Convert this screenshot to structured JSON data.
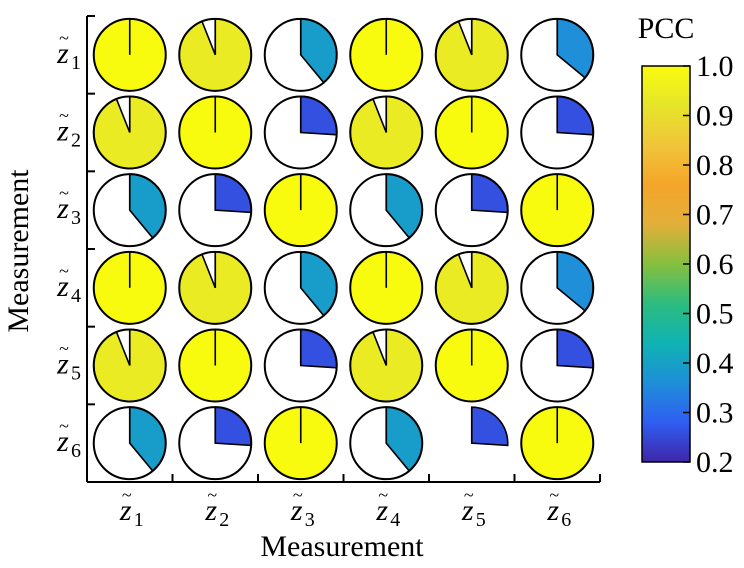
{
  "chart_data": {
    "type": "heatmap",
    "glyph": "pie",
    "xlabel": "Measurement",
    "ylabel": "Measurement",
    "x_categories": [
      {
        "symbol": "z",
        "accent": "~",
        "subscript": "1"
      },
      {
        "symbol": "z",
        "accent": "~",
        "subscript": "2"
      },
      {
        "symbol": "z",
        "accent": "~",
        "subscript": "3"
      },
      {
        "symbol": "z",
        "accent": "~",
        "subscript": "4"
      },
      {
        "symbol": "z",
        "accent": "~",
        "subscript": "5"
      },
      {
        "symbol": "z",
        "accent": "~",
        "subscript": "6"
      }
    ],
    "y_categories": [
      {
        "symbol": "z",
        "accent": "~",
        "subscript": "1"
      },
      {
        "symbol": "z",
        "accent": "~",
        "subscript": "2"
      },
      {
        "symbol": "z",
        "accent": "~",
        "subscript": "3"
      },
      {
        "symbol": "z",
        "accent": "~",
        "subscript": "4"
      },
      {
        "symbol": "z",
        "accent": "~",
        "subscript": "5"
      },
      {
        "symbol": "z",
        "accent": "~",
        "subscript": "6"
      }
    ],
    "values": [
      [
        1.0,
        0.94,
        0.39,
        1.0,
        0.94,
        0.36
      ],
      [
        0.94,
        1.0,
        0.26,
        0.94,
        1.0,
        0.26
      ],
      [
        0.39,
        0.26,
        1.0,
        0.39,
        0.26,
        1.0
      ],
      [
        1.0,
        0.94,
        0.39,
        1.0,
        0.94,
        0.36
      ],
      [
        0.94,
        1.0,
        0.26,
        0.94,
        1.0,
        0.26
      ],
      [
        0.39,
        0.26,
        1.0,
        0.39,
        0.26,
        1.0
      ]
    ],
    "outlined": [
      [
        true,
        true,
        true,
        true,
        true,
        true
      ],
      [
        true,
        true,
        true,
        true,
        true,
        true
      ],
      [
        true,
        true,
        true,
        true,
        true,
        true
      ],
      [
        true,
        true,
        true,
        true,
        true,
        true
      ],
      [
        true,
        true,
        true,
        true,
        true,
        true
      ],
      [
        true,
        true,
        true,
        true,
        false,
        true
      ]
    ],
    "colorbar": {
      "title": "PCC",
      "range": [
        0.2,
        1.0
      ],
      "ticks": [
        "1.0",
        "0.9",
        "0.8",
        "0.7",
        "0.6",
        "0.5",
        "0.4",
        "0.3",
        "0.2"
      ],
      "tick_values": [
        1.0,
        0.9,
        0.8,
        0.7,
        0.6,
        0.5,
        0.4,
        0.3,
        0.2
      ],
      "colormap": [
        "#3e26a8",
        "#2f5ef2",
        "#1e8fd8",
        "#0fb3b3",
        "#2cbc7e",
        "#86bf3e",
        "#e2af3a",
        "#f5a52a",
        "#f0c53a",
        "#e6e52a",
        "#f9fb0e"
      ]
    },
    "colors": {
      "high": "#e2e22a",
      "medium_high": "#f0a72e",
      "medium_low": "#3c72cc",
      "low": "#3d30a0"
    }
  }
}
